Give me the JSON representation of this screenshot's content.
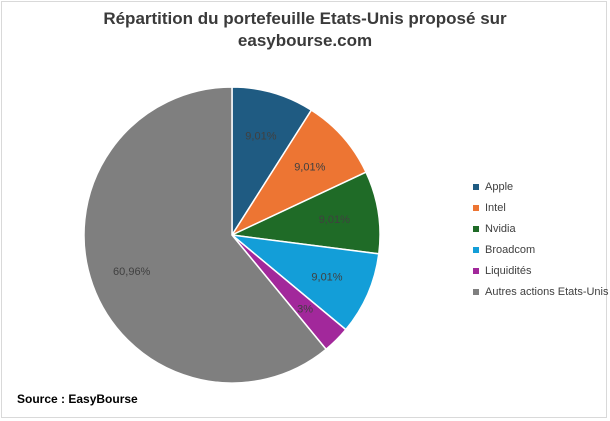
{
  "chart_data": {
    "type": "pie",
    "title_line1": "Répartition du portefeuille  Etats-Unis proposé sur",
    "title_line2": "easybourse.com",
    "slices": [
      {
        "label": "Apple",
        "value": 9.01,
        "value_label": "9,01%",
        "color": "#1f5b82"
      },
      {
        "label": "Intel",
        "value": 9.01,
        "value_label": "9,01%",
        "color": "#ed7533"
      },
      {
        "label": "Nvidia",
        "value": 9.01,
        "value_label": "9,01%",
        "color": "#1f6b27"
      },
      {
        "label": "Broadcom",
        "value": 9.01,
        "value_label": "9,01%",
        "color": "#139ed8"
      },
      {
        "label": "Liquidités",
        "value": 3.0,
        "value_label": "3%",
        "color": "#a2289b"
      },
      {
        "label": "Autres actions Etats-Unis",
        "value": 60.96,
        "value_label": "60,96%",
        "color": "#7f7f7f"
      }
    ],
    "legend_position": "right"
  },
  "source": "Source : EasyBourse"
}
